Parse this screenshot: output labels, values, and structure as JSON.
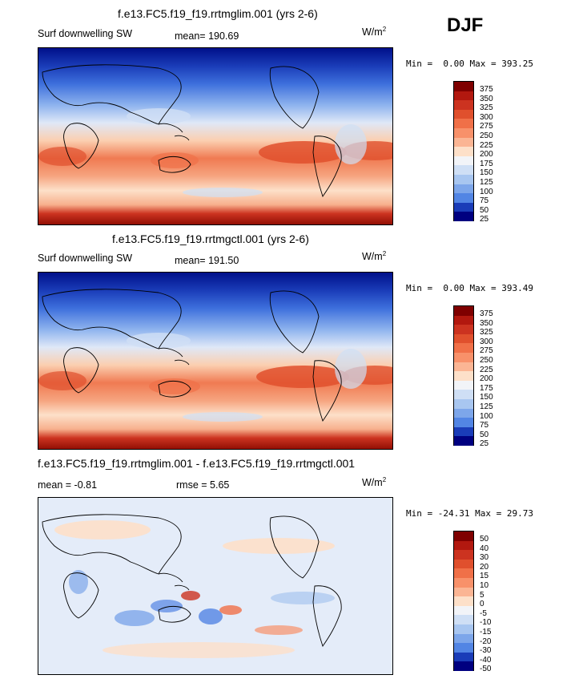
{
  "season": "DJF",
  "panels": [
    {
      "id": "top",
      "title": "f.e13.FC5.f19_f19.rrtmglim.001 (yrs 2-6)",
      "variable": "Surf downwelling SW",
      "stat_label": "mean=",
      "stat_value": "190.69",
      "units_base": "W/m",
      "units_exp": "2",
      "min_label": "Min =",
      "min_value": "0.00",
      "max_label": "Max =",
      "max_value": "393.25",
      "colorbar_labels": [
        "375",
        "350",
        "325",
        "300",
        "275",
        "250",
        "225",
        "200",
        "175",
        "150",
        "125",
        "100",
        "75",
        "50",
        "25"
      ]
    },
    {
      "id": "middle",
      "title": "f.e13.FC5.f19_f19.rrtmgctl.001 (yrs 2-6)",
      "variable": "Surf downwelling SW",
      "stat_label": "mean=",
      "stat_value": "191.50",
      "units_base": "W/m",
      "units_exp": "2",
      "min_label": "Min =",
      "min_value": "0.00",
      "max_label": "Max =",
      "max_value": "393.49",
      "colorbar_labels": [
        "375",
        "350",
        "325",
        "300",
        "275",
        "250",
        "225",
        "200",
        "175",
        "150",
        "125",
        "100",
        "75",
        "50",
        "25"
      ]
    },
    {
      "id": "bottom",
      "title": "f.e13.FC5.f19_f19.rrtmglim.001 - f.e13.FC5.f19_f19.rrtmgctl.001",
      "mean_label": "mean =",
      "mean_value": "-0.81",
      "rmse_label": "rmse =",
      "rmse_value": "5.65",
      "units_base": "W/m",
      "units_exp": "2",
      "min_label": "Min =",
      "min_value": "-24.31",
      "max_label": "Max =",
      "max_value": "29.73",
      "colorbar_labels": [
        "50",
        "40",
        "30",
        "20",
        "15",
        "10",
        "5",
        "0",
        "-5",
        "-10",
        "-15",
        "-20",
        "-30",
        "-40",
        "-50"
      ]
    }
  ],
  "colors": {
    "scale": [
      "#7f0000",
      "#b2180f",
      "#cc3320",
      "#e0502d",
      "#f07048",
      "#f8916a",
      "#fbb594",
      "#fde0c9",
      "#f2f4f8",
      "#cfdff5",
      "#a8c6f0",
      "#7da6ea",
      "#5285e4",
      "#2d5fd6",
      "#1a3cb8",
      "#0a1c96",
      "#000080"
    ],
    "land_outline": "#000000"
  }
}
